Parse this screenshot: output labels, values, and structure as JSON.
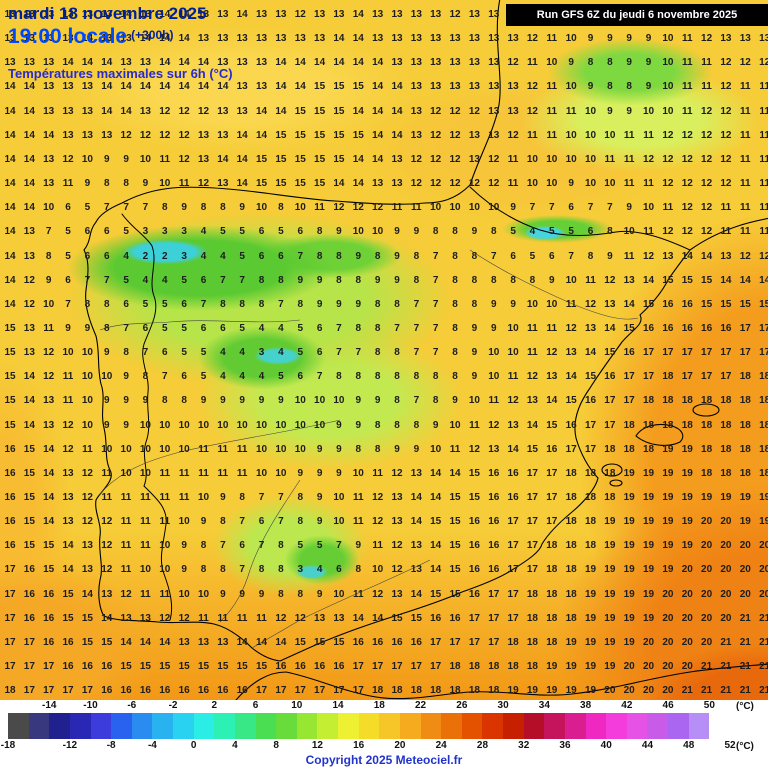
{
  "header": {
    "date_line": "mardi 18 novembre 2025",
    "time_line": "19:00 locale",
    "forecast_offset": "(+300h)",
    "subtitle": "Températures maximales sur 6h (°C)",
    "run_info": "Run GFS 6Z du jeudi 6 novembre 2025"
  },
  "footer": {
    "copyright": "Copyright 2025 Meteociel.fr",
    "unit_label": "(°C)"
  },
  "colors": {
    "base_yellow": "#f6cc38",
    "header_navy": "#001f9c",
    "header_blue": "#0048ff",
    "subtitle_blue": "#2a2ad2",
    "run_box_bg": "#000000",
    "run_box_text": "#ffffff",
    "copyright_blue": "#2233cc"
  },
  "legend": {
    "min_value": -18,
    "max_value": 52,
    "top_values": [
      -14,
      -10,
      -6,
      -2,
      2,
      6,
      10,
      14,
      18,
      22,
      26,
      30,
      34,
      38,
      42,
      46,
      50
    ],
    "bottom_values": [
      -18,
      -12,
      -8,
      -4,
      0,
      4,
      8,
      12,
      16,
      20,
      24,
      28,
      32,
      36,
      40,
      44,
      48,
      52
    ],
    "colors": [
      "#4a4a4a",
      "#38387e",
      "#20208e",
      "#2828b4",
      "#3c3cdc",
      "#2862ee",
      "#2a8cf0",
      "#28b2f0",
      "#2ad2f2",
      "#2aeee6",
      "#2df0b4",
      "#38e886",
      "#4ade52",
      "#68dc3a",
      "#96e632",
      "#c4ee32",
      "#eef032",
      "#f4dc28",
      "#f6c628",
      "#f6aa1e",
      "#f08c14",
      "#ea7008",
      "#e45200",
      "#da3400",
      "#c62000",
      "#b40e28",
      "#c6145c",
      "#da1e90",
      "#ee28c0",
      "#f43cdc",
      "#e652e6",
      "#c85ce8",
      "#aa66f0",
      "#b68ef6",
      "#ffffff"
    ]
  },
  "temperature_grid": {
    "rows": [
      "13 13 13 13 13 13 14 13 14 14 13 13 14 13 13 12 13 13 14 13 13 13 13 12 13 13 13 14 13 13 13 13 13 13 13 13 13 13 13 13",
      "13 13 13 13 14 13 13 14 14 14 13 13 13 13 13 13 13 14 14 13 13 13 13 13 13 13 13 12 11 10 9 9 9 9 10 11 12 13 13 13",
      "13 13 13 14 14 14 13 13 14 14 14 13 13 13 14 14 14 14 14 14 13 13 13 13 13 13 12 11 10 9 8 8 9 9 10 11 11 12 12 12",
      "14 14 13 13 13 14 14 14 14 14 14 14 13 13 14 14 15 15 15 14 14 13 13 13 13 13 13 12 11 10 9 8 8 9 10 11 11 12 11 11",
      "14 14 13 13 13 14 14 13 12 12 12 13 13 14 14 15 15 15 14 14 14 13 12 12 12 13 13 12 11 11 10 9 9 10 10 11 12 12 11 11",
      "14 14 14 13 13 13 12 12 12 12 13 13 14 14 15 15 15 15 15 14 14 13 12 12 13 13 12 11 11 10 10 10 11 11 12 12 12 12 11 11",
      "14 14 13 12 10 9 9 10 11 12 13 14 14 15 15 15 15 15 14 14 13 12 12 12 13 12 11 10 10 10 10 11 11 12 12 12 12 12 11 11",
      "14 14 13 11 9 8 8 9 10 11 12 13 14 15 15 15 15 14 14 13 13 12 12 12 12 12 11 10 10 9 10 10 11 11 12 12 12 12 11 11",
      "14 14 10 6 5 7 7 7 8 9 8 8 9 10 8 10 11 12 12 12 11 11 10 10 10 10 9 7 7 6 7 7 9 10 11 12 12 11 11 11",
      "14 13 7 5 6 6 5 3 3 3 4 5 5 6 5 6 8 9 10 10 9 9 8 8 9 8 5 4 5 5 6 8 10 11 12 12 12 11 11 11",
      "14 13 8 5 6 6 4 2 2 3 4 4 5 6 6 7 8 8 9 8 9 8 7 8 8 7 6 5 6 7 8 9 11 12 13 14 14 13 12 12",
      "14 12 9 6 7 7 5 4 4 5 6 7 7 8 8 9 9 8 8 9 9 8 7 8 8 8 8 8 9 10 11 12 13 14 15 15 15 14 14 14",
      "14 12 10 7 8 8 6 5 5 6 7 8 8 8 7 8 9 9 9 8 8 7 7 8 8 9 9 10 10 11 12 13 14 15 16 16 15 15 15 15",
      "15 13 11 9 9 8 7 6 5 5 6 6 5 4 4 5 6 7 8 8 7 7 7 8 9 9 10 11 11 12 13 14 15 16 16 16 16 16 17 17",
      "15 13 12 10 10 9 8 7 6 5 5 4 4 3 4 5 6 7 7 8 8 7 7 8 9 10 10 11 12 13 14 15 16 17 17 17 17 17 17 17",
      "15 14 12 11 10 10 9 8 7 6 5 4 4 4 5 6 7 8 8 8 8 8 8 8 9 10 11 12 13 14 15 16 17 17 18 17 17 17 18 18",
      "15 14 13 11 10 9 9 9 8 8 9 9 9 9 9 10 10 10 9 9 8 7 8 9 10 11 12 13 14 15 16 17 17 18 18 18 18 18 18 18",
      "15 14 13 12 10 9 9 10 10 10 10 10 10 10 10 10 10 9 9 8 8 8 9 10 11 12 13 14 15 16 17 17 18 18 18 18 18 18 18 18",
      "16 15 14 12 11 10 10 10 10 10 11 11 11 10 10 10 9 9 8 8 9 9 10 11 12 13 14 15 16 17 17 18 18 18 19 19 18 18 18 18",
      "16 15 14 13 12 11 10 10 11 11 11 11 11 10 10 9 9 9 10 11 12 13 14 14 15 16 16 17 17 18 18 18 19 19 19 19 18 18 18 18",
      "16 15 14 13 12 11 11 11 11 11 10 9 8 7 7 8 9 10 11 12 13 14 14 15 15 16 16 17 17 18 18 18 19 19 19 19 19 19 19 19",
      "16 15 14 13 12 12 11 11 11 10 9 8 7 6 7 8 9 10 11 12 13 14 15 15 16 16 17 17 17 18 18 19 19 19 19 19 20 20 19 19",
      "16 15 15 14 13 12 11 11 10 9 8 7 6 7 8 5 5 7 9 11 12 13 14 15 16 16 17 17 18 18 18 19 19 19 19 19 20 20 20 20",
      "17 16 15 14 13 12 11 10 10 9 8 8 7 8 8 3 4 6 8 10 12 13 14 15 16 16 17 17 18 18 19 19 19 19 19 20 20 20 20 20",
      "17 16 16 15 14 13 12 11 11 10 10 9 9 9 8 8 9 10 11 12 13 14 15 15 16 17 17 18 18 18 19 19 19 19 20 20 20 20 20 20",
      "17 16 16 15 15 14 13 13 12 12 11 11 11 11 12 12 13 13 14 14 15 15 16 16 17 17 17 18 18 18 19 19 19 19 20 20 20 20 21 21",
      "17 17 16 16 15 15 14 14 14 13 13 13 14 14 14 15 15 15 16 16 16 16 17 17 17 17 18 18 18 19 19 19 19 20 20 20 20 21 21 21",
      "17 17 17 16 16 16 15 15 15 15 15 15 15 15 16 16 16 16 17 17 17 17 17 18 18 18 18 18 19 19 19 19 20 20 20 20 21 21 21 21",
      "18 17 17 17 17 16 16 16 16 16 16 16 16 17 17 17 17 17 17 18 18 18 18 18 18 18 19 19 19 19 19 20 20 20 20 21 21 21 21 21"
    ]
  }
}
